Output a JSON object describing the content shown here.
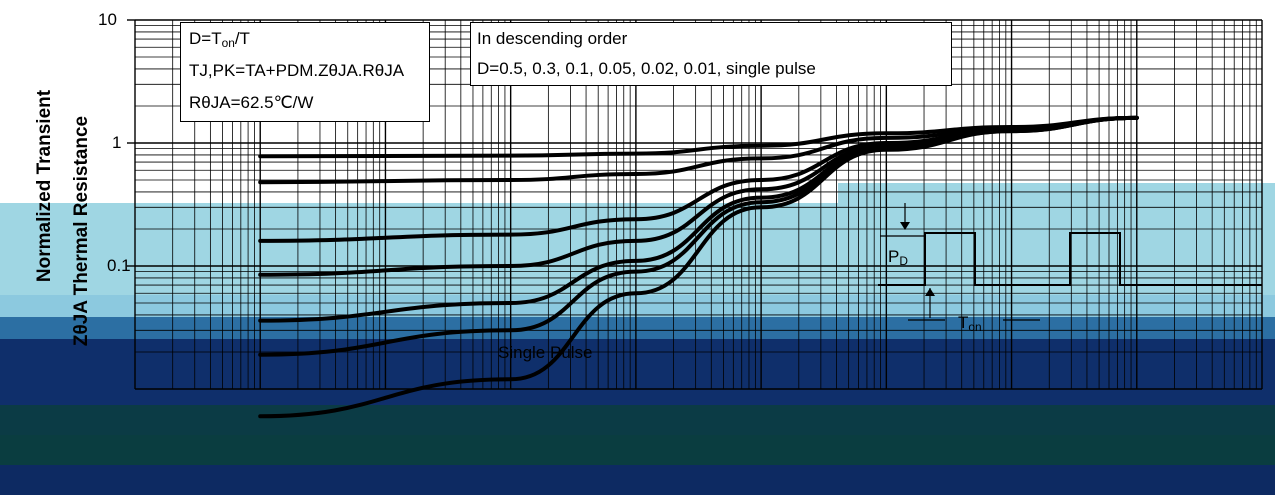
{
  "chart_data": {
    "type": "line",
    "ylabel_line1": "Normalized Transient",
    "ylabel_line2": "ZθJA Thermal Resistance",
    "y_scale": "log",
    "ylim": [
      0.01,
      10
    ],
    "y_ticks": [
      "10",
      "1",
      "0.1"
    ],
    "x_scale": "log",
    "xlim": [
      1e-06,
      1000
    ],
    "grid": true,
    "legend_text": {
      "line1_D": "D=T",
      "line1_on": "on",
      "line1_T": "/T",
      "line2": "TJ,PK=TA+PDM.ZθJA.RθJA",
      "line3": "RθJA=62.5℃/W",
      "right1": "In descending order",
      "right2": "D=0.5, 0.3, 0.1, 0.05, 0.02, 0.01, single pulse"
    },
    "inset_labels": {
      "pd": "PD",
      "ton": "Ton"
    },
    "annotation": "Single Pulse",
    "series": [
      {
        "x": [
          1e-05,
          0.001,
          0.01,
          0.1,
          1,
          10,
          100
        ],
        "values": [
          0.78,
          0.79,
          0.82,
          0.95,
          1.2,
          1.35,
          1.6
        ]
      },
      {
        "x": [
          1e-05,
          0.001,
          0.01,
          0.1,
          1,
          10,
          100
        ],
        "values": [
          0.48,
          0.5,
          0.56,
          0.75,
          1.1,
          1.3,
          1.6
        ]
      },
      {
        "x": [
          1e-05,
          0.001,
          0.01,
          0.1,
          1,
          10,
          100
        ],
        "values": [
          0.16,
          0.18,
          0.24,
          0.5,
          1.0,
          1.28,
          1.6
        ]
      },
      {
        "x": [
          1e-05,
          0.001,
          0.01,
          0.1,
          1,
          10,
          100
        ],
        "values": [
          0.085,
          0.1,
          0.16,
          0.42,
          0.95,
          1.27,
          1.6
        ]
      },
      {
        "x": [
          1e-05,
          0.001,
          0.01,
          0.1,
          1,
          10,
          100
        ],
        "values": [
          0.036,
          0.05,
          0.11,
          0.36,
          0.92,
          1.26,
          1.6
        ]
      },
      {
        "x": [
          1e-05,
          0.001,
          0.01,
          0.1,
          1,
          10,
          100
        ],
        "values": [
          0.019,
          0.03,
          0.09,
          0.33,
          0.9,
          1.25,
          1.6
        ]
      },
      {
        "x": [
          1e-05,
          0.001,
          0.01,
          0.1,
          1,
          10,
          100
        ],
        "values": [
          0.006,
          0.012,
          0.06,
          0.3,
          0.88,
          1.25,
          1.6
        ]
      }
    ]
  },
  "colors": {
    "background": "#ffffff",
    "curve": "#000000",
    "band_light": "#9fd6e3",
    "band_mid": "#5aa6c9",
    "band_blue": "#2c6fa3",
    "band_navy": "#0f2f6b",
    "band_dark": "#0b3b45",
    "band_navy2": "#0d2a62"
  }
}
